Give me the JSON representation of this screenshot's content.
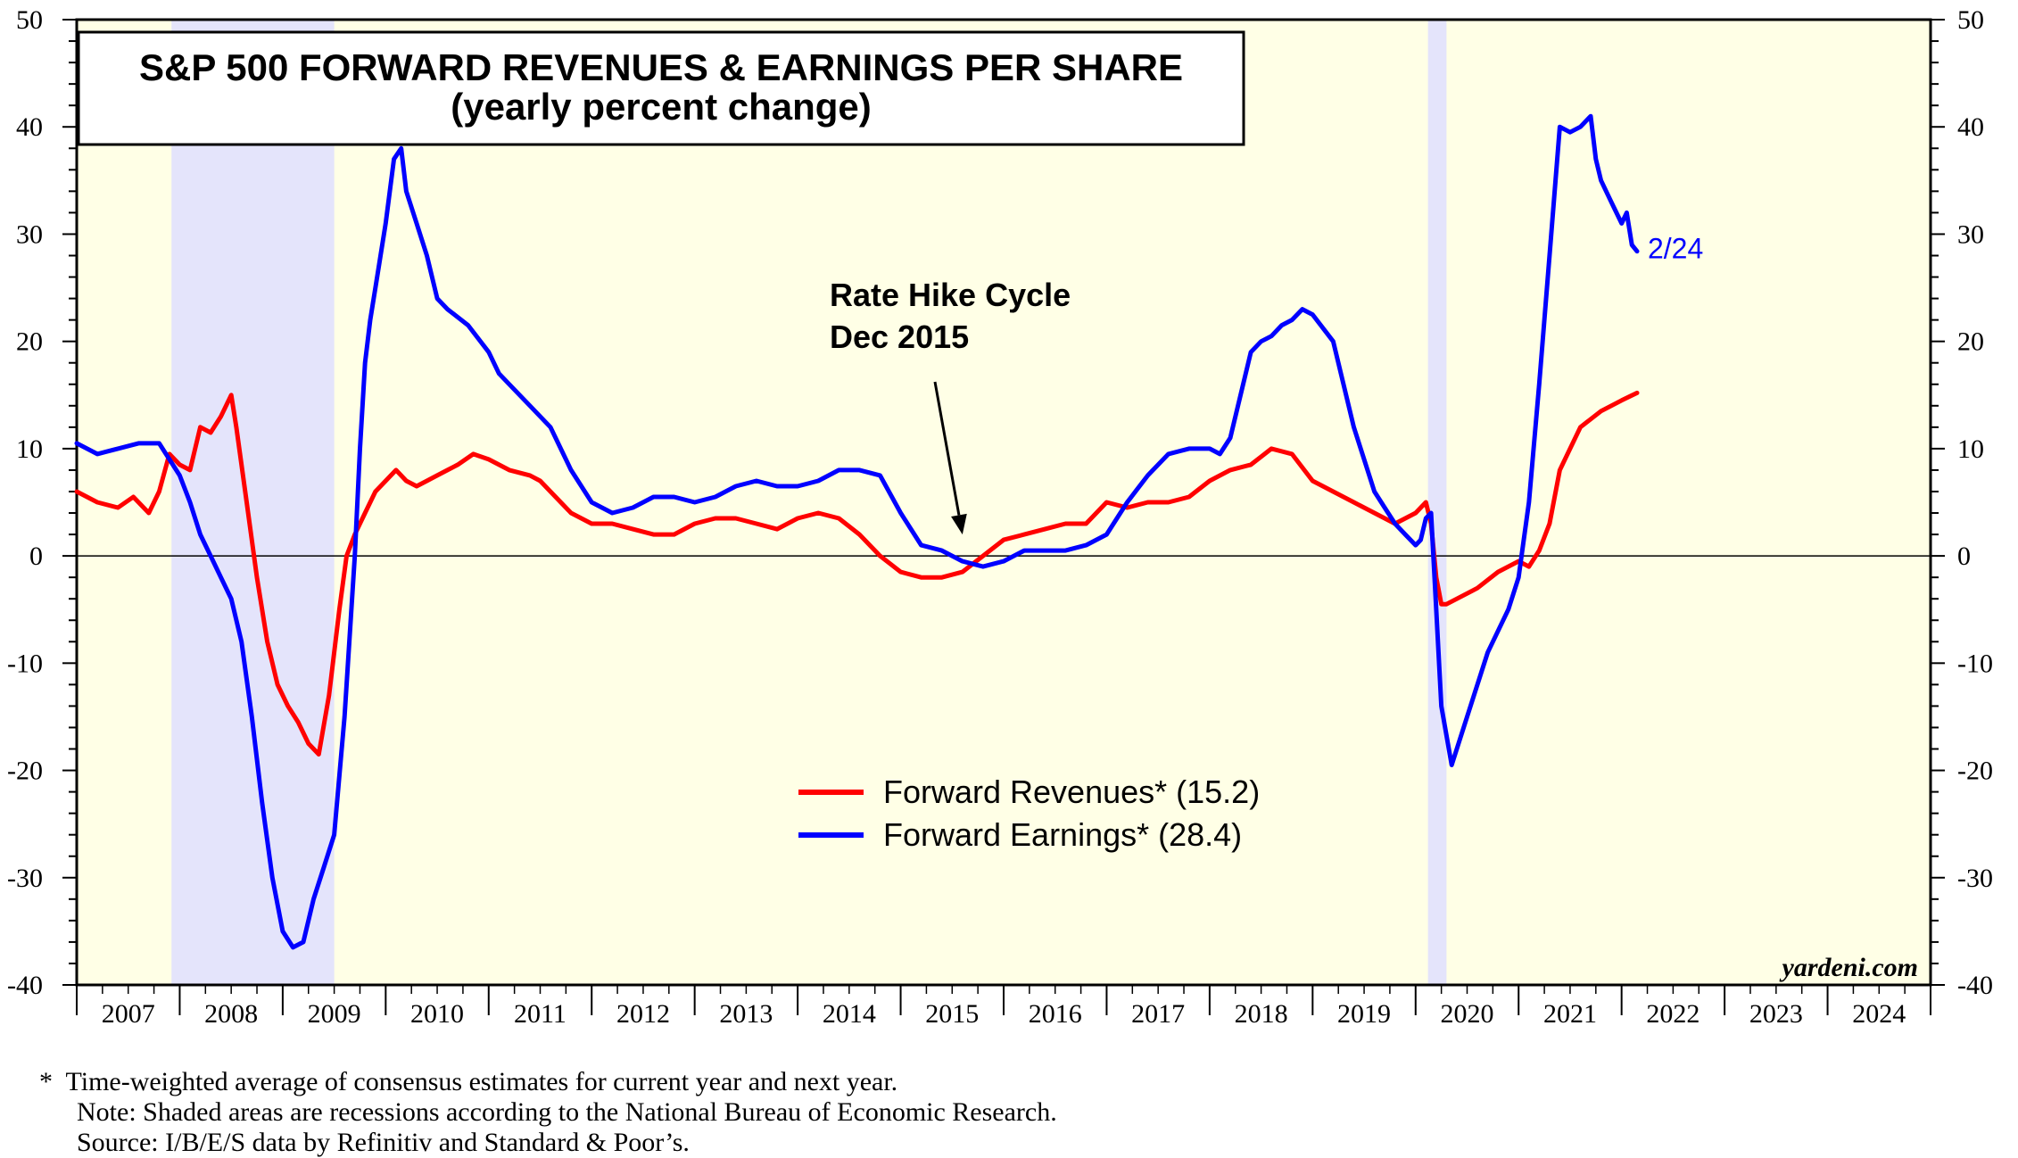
{
  "chart_data": {
    "type": "line",
    "title": "S&P 500 FORWARD REVENUES & EARNINGS PER SHARE",
    "subtitle": "(yearly percent change)",
    "ylim": [
      -40,
      50
    ],
    "y_ticks": [
      "50",
      "40",
      "30",
      "20",
      "10",
      "0",
      "-10",
      "-20",
      "-30",
      "-40"
    ],
    "y_tick_values": [
      50,
      40,
      30,
      20,
      10,
      0,
      -10,
      -20,
      -30,
      -40
    ],
    "x_range": [
      2007.0,
      2025.0
    ],
    "x_tick_labels": [
      "2007",
      "2008",
      "2009",
      "2010",
      "2011",
      "2012",
      "2013",
      "2014",
      "2015",
      "2016",
      "2017",
      "2018",
      "2019",
      "2020",
      "2021",
      "2022",
      "2023",
      "2024"
    ],
    "grid": false,
    "zero_line": true,
    "recessions": [
      {
        "start": 2007.92,
        "end": 2009.5
      },
      {
        "start": 2020.12,
        "end": 2020.3
      }
    ],
    "annotation": {
      "lines": [
        "Rate Hike Cycle",
        "Dec 2015"
      ],
      "arrow_to": [
        2015.6,
        2.0
      ]
    },
    "end_label": {
      "text": "2/24",
      "x": 2022.15,
      "y": 28.4
    },
    "watermark": "yardeni.com",
    "legend": {
      "placement": "center-bottom",
      "entries": [
        "Forward Revenues* (15.2)",
        "Forward Earnings* (28.4)"
      ]
    },
    "series": [
      {
        "name": "Forward Revenues* (15.2)",
        "color": "#ff0000",
        "x": [
          2007.0,
          2007.2,
          2007.4,
          2007.55,
          2007.7,
          2007.8,
          2007.9,
          2008.0,
          2008.1,
          2008.2,
          2008.3,
          2008.4,
          2008.45,
          2008.5,
          2008.55,
          2008.65,
          2008.75,
          2008.85,
          2008.95,
          2009.05,
          2009.15,
          2009.25,
          2009.35,
          2009.45,
          2009.55,
          2009.62,
          2009.7,
          2009.8,
          2009.9,
          2010.0,
          2010.1,
          2010.2,
          2010.3,
          2010.4,
          2010.5,
          2010.6,
          2010.7,
          2010.85,
          2011.0,
          2011.2,
          2011.4,
          2011.5,
          2011.6,
          2011.8,
          2012.0,
          2012.2,
          2012.4,
          2012.6,
          2012.8,
          2013.0,
          2013.2,
          2013.4,
          2013.6,
          2013.8,
          2014.0,
          2014.2,
          2014.4,
          2014.6,
          2014.8,
          2015.0,
          2015.2,
          2015.4,
          2015.6,
          2015.8,
          2016.0,
          2016.2,
          2016.4,
          2016.6,
          2016.8,
          2017.0,
          2017.2,
          2017.4,
          2017.6,
          2017.8,
          2018.0,
          2018.2,
          2018.4,
          2018.6,
          2018.8,
          2019.0,
          2019.2,
          2019.4,
          2019.6,
          2019.8,
          2020.0,
          2020.1,
          2020.15,
          2020.2,
          2020.25,
          2020.3,
          2020.4,
          2020.6,
          2020.8,
          2021.0,
          2021.1,
          2021.2,
          2021.3,
          2021.4,
          2021.6,
          2021.8,
          2022.0,
          2022.15
        ],
        "y": [
          6,
          5,
          4.5,
          5.5,
          4,
          6,
          9.5,
          8.5,
          8,
          12,
          11.5,
          13,
          14,
          15,
          12,
          5,
          -2,
          -8,
          -12,
          -14,
          -15.5,
          -17.5,
          -18.5,
          -13,
          -5,
          0,
          2,
          4,
          6,
          7,
          8,
          7,
          6.5,
          7,
          7.5,
          8,
          8.5,
          9.5,
          9,
          8,
          7.5,
          7,
          6,
          4,
          3,
          3,
          2.5,
          2,
          2,
          3,
          3.5,
          3.5,
          3,
          2.5,
          3.5,
          4,
          3.5,
          2,
          0,
          -1.5,
          -2,
          -2,
          -1.5,
          0,
          1.5,
          2,
          2.5,
          3,
          3,
          5,
          4.5,
          5,
          5,
          5.5,
          7,
          8,
          8.5,
          10,
          9.5,
          7,
          6,
          5,
          4,
          3,
          4,
          5,
          3,
          -2,
          -4.5,
          -4.5,
          -4,
          -3,
          -1.5,
          -0.5,
          -1,
          0.5,
          3,
          8,
          12,
          13.5,
          14.5,
          15.2
        ]
      },
      {
        "name": "Forward Earnings* (28.4)",
        "color": "#0000ff",
        "x": [
          2007.0,
          2007.2,
          2007.4,
          2007.6,
          2007.8,
          2007.9,
          2008.0,
          2008.1,
          2008.2,
          2008.3,
          2008.4,
          2008.5,
          2008.6,
          2008.7,
          2008.8,
          2008.9,
          2009.0,
          2009.1,
          2009.2,
          2009.3,
          2009.4,
          2009.5,
          2009.6,
          2009.7,
          2009.75,
          2009.8,
          2009.85,
          2009.9,
          2010.0,
          2010.08,
          2010.15,
          2010.2,
          2010.3,
          2010.4,
          2010.5,
          2010.6,
          2010.8,
          2011.0,
          2011.1,
          2011.2,
          2011.4,
          2011.6,
          2011.8,
          2012.0,
          2012.2,
          2012.4,
          2012.6,
          2012.8,
          2013.0,
          2013.2,
          2013.4,
          2013.6,
          2013.8,
          2014.0,
          2014.2,
          2014.4,
          2014.6,
          2014.8,
          2015.0,
          2015.2,
          2015.4,
          2015.6,
          2015.8,
          2016.0,
          2016.2,
          2016.4,
          2016.6,
          2016.8,
          2017.0,
          2017.2,
          2017.4,
          2017.6,
          2017.8,
          2018.0,
          2018.1,
          2018.2,
          2018.4,
          2018.5,
          2018.6,
          2018.7,
          2018.8,
          2018.9,
          2019.0,
          2019.2,
          2019.4,
          2019.6,
          2019.7,
          2019.8,
          2019.9,
          2020.0,
          2020.05,
          2020.1,
          2020.15,
          2020.2,
          2020.25,
          2020.35,
          2020.5,
          2020.7,
          2020.9,
          2021.0,
          2021.1,
          2021.2,
          2021.3,
          2021.4,
          2021.5,
          2021.6,
          2021.7,
          2021.75,
          2021.8,
          2021.9,
          2022.0,
          2022.05,
          2022.1,
          2022.15
        ],
        "y": [
          10.5,
          9.5,
          10,
          10.5,
          10.5,
          9,
          7.5,
          5,
          2,
          0,
          -2,
          -4,
          -8,
          -15,
          -23,
          -30,
          -35,
          -36.5,
          -36,
          -32,
          -29,
          -26,
          -15,
          0,
          10,
          18,
          22,
          25,
          31,
          37,
          38,
          34,
          31,
          28,
          24,
          23,
          21.5,
          19,
          17,
          16,
          14,
          12,
          8,
          5,
          4,
          4.5,
          5.5,
          5.5,
          5,
          5.5,
          6.5,
          7,
          6.5,
          6.5,
          7,
          8,
          8,
          7.5,
          4,
          1,
          0.5,
          -0.5,
          -1,
          -0.5,
          0.5,
          0.5,
          0.5,
          1,
          2,
          5,
          7.5,
          9.5,
          10,
          10,
          9.5,
          11,
          19,
          20,
          20.5,
          21.5,
          22,
          23,
          22.5,
          20,
          12,
          6,
          4.5,
          3,
          2,
          1,
          1.5,
          3.5,
          4,
          -5,
          -14,
          -19.5,
          -15,
          -9,
          -5,
          -2,
          5,
          16,
          28,
          40,
          39.5,
          40,
          41,
          37,
          35,
          33,
          31,
          32,
          29,
          28.4
        ]
      }
    ]
  },
  "footnotes": [
    "*  Time-weighted average of consensus estimates for current year and next year.",
    "Note: Shaded areas are recessions according to the National Bureau of Economic Research.",
    "Source: I/B/E/S data by Refinitiv and Standard & Poor’s."
  ]
}
